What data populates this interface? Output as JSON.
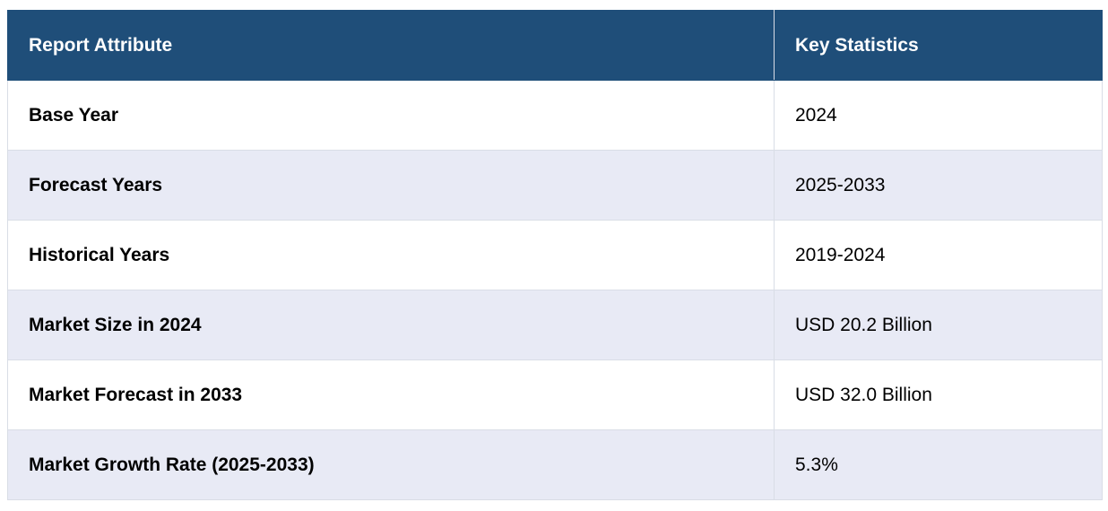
{
  "table": {
    "headers": [
      "Report Attribute",
      "Key Statistics"
    ],
    "rows": [
      {
        "attribute": "Base Year",
        "value": "2024"
      },
      {
        "attribute": "Forecast Years",
        "value": "2025-2033"
      },
      {
        "attribute": "Historical Years",
        "value": "2019-2024"
      },
      {
        "attribute": "Market Size in 2024",
        "value": "USD 20.2 Billion"
      },
      {
        "attribute": "Market Forecast in 2033",
        "value": "USD 32.0 Billion"
      },
      {
        "attribute": "Market Growth Rate (2025-2033)",
        "value": "5.3%"
      }
    ]
  },
  "colors": {
    "header_bg": "#1f4e79",
    "header_text": "#ffffff",
    "row_alt_bg": "#e8eaf5",
    "border": "#d9dde6"
  }
}
